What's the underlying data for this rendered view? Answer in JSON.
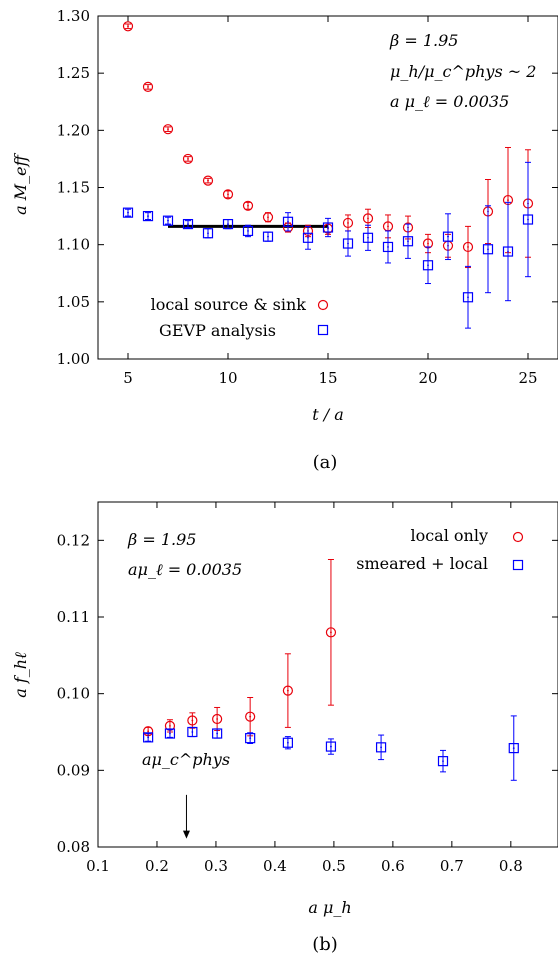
{
  "chart_data": [
    {
      "type": "scatter",
      "panel_label": "(a)",
      "xlabel": "t / a",
      "ylabel": "a M_eff",
      "xlim": [
        3.5,
        26.5
      ],
      "ylim": [
        1.0,
        1.3
      ],
      "xticks": [
        5,
        10,
        15,
        20,
        25
      ],
      "yticks": [
        1.0,
        1.05,
        1.1,
        1.15,
        1.2,
        1.25,
        1.3
      ],
      "xtick_labels": [
        "5",
        "10",
        "15",
        "20",
        "25"
      ],
      "ytick_labels": [
        "1.00",
        "1.05",
        "1.10",
        "1.15",
        "1.20",
        "1.25",
        "1.30"
      ],
      "grid": false,
      "legend_position": "bottom-left",
      "annotations": [
        "β = 1.95",
        "μ_h/μ_c^phys ~ 2",
        "a μ_ℓ = 0.0035"
      ],
      "series": [
        {
          "name": "local source & sink",
          "marker": "circle",
          "color": "#e8000b",
          "points": [
            {
              "x": 5,
              "y": 1.291,
              "err": 0.002
            },
            {
              "x": 6,
              "y": 1.238,
              "err": 0.002
            },
            {
              "x": 7,
              "y": 1.201,
              "err": 0.002
            },
            {
              "x": 8,
              "y": 1.175,
              "err": 0.002
            },
            {
              "x": 9,
              "y": 1.156,
              "err": 0.002
            },
            {
              "x": 10,
              "y": 1.144,
              "err": 0.003
            },
            {
              "x": 11,
              "y": 1.134,
              "err": 0.003
            },
            {
              "x": 12,
              "y": 1.124,
              "err": 0.004
            },
            {
              "x": 13,
              "y": 1.115,
              "err": 0.004
            },
            {
              "x": 14,
              "y": 1.112,
              "err": 0.005
            },
            {
              "x": 15,
              "y": 1.114,
              "err": 0.005
            },
            {
              "x": 16,
              "y": 1.119,
              "err": 0.007
            },
            {
              "x": 17,
              "y": 1.123,
              "err": 0.008
            },
            {
              "x": 18,
              "y": 1.116,
              "err": 0.01
            },
            {
              "x": 19,
              "y": 1.115,
              "err": 0.01
            },
            {
              "x": 20,
              "y": 1.101,
              "err": 0.008
            },
            {
              "x": 21,
              "y": 1.099,
              "err": 0.01
            },
            {
              "x": 22,
              "y": 1.098,
              "err": 0.018
            },
            {
              "x": 23,
              "y": 1.129,
              "err": 0.028
            },
            {
              "x": 24,
              "y": 1.139,
              "err": 0.046
            },
            {
              "x": 25,
              "y": 1.136,
              "err": 0.047
            }
          ]
        },
        {
          "name": "GEVP analysis",
          "marker": "square",
          "color": "#0000ff",
          "points": [
            {
              "x": 5,
              "y": 1.128,
              "err": 0.003
            },
            {
              "x": 6,
              "y": 1.125,
              "err": 0.003
            },
            {
              "x": 7,
              "y": 1.121,
              "err": 0.003
            },
            {
              "x": 8,
              "y": 1.118,
              "err": 0.003
            },
            {
              "x": 9,
              "y": 1.11,
              "err": 0.004
            },
            {
              "x": 10,
              "y": 1.118,
              "err": 0.004
            },
            {
              "x": 11,
              "y": 1.112,
              "err": 0.005
            },
            {
              "x": 12,
              "y": 1.107,
              "err": 0.004
            },
            {
              "x": 13,
              "y": 1.12,
              "err": 0.008
            },
            {
              "x": 14,
              "y": 1.106,
              "err": 0.01
            },
            {
              "x": 15,
              "y": 1.115,
              "err": 0.008
            },
            {
              "x": 16,
              "y": 1.101,
              "err": 0.011
            },
            {
              "x": 17,
              "y": 1.106,
              "err": 0.011
            },
            {
              "x": 18,
              "y": 1.098,
              "err": 0.014
            },
            {
              "x": 19,
              "y": 1.103,
              "err": 0.015
            },
            {
              "x": 20,
              "y": 1.082,
              "err": 0.016
            },
            {
              "x": 21,
              "y": 1.107,
              "err": 0.02
            },
            {
              "x": 22,
              "y": 1.054,
              "err": 0.027
            },
            {
              "x": 23,
              "y": 1.096,
              "err": 0.038
            },
            {
              "x": 24,
              "y": 1.094,
              "err": 0.043
            },
            {
              "x": 25,
              "y": 1.122,
              "err": 0.05
            }
          ]
        }
      ],
      "fit_line": {
        "x": [
          7,
          15
        ],
        "y": 1.116,
        "color": "#000000"
      }
    },
    {
      "type": "scatter",
      "panel_label": "(b)",
      "xlabel": "a μ_h",
      "ylabel": "a f_hℓ",
      "xlim": [
        0.1,
        0.88
      ],
      "ylim": [
        0.08,
        0.125
      ],
      "xticks": [
        0.1,
        0.2,
        0.3,
        0.4,
        0.5,
        0.6,
        0.7,
        0.8
      ],
      "yticks": [
        0.08,
        0.09,
        0.1,
        0.11,
        0.12
      ],
      "xtick_labels": [
        "0.1",
        "0.2",
        "0.3",
        "0.4",
        "0.5",
        "0.6",
        "0.7",
        "0.8"
      ],
      "ytick_labels": [
        "0.08",
        "0.09",
        "0.10",
        "0.11",
        "0.12"
      ],
      "grid": false,
      "legend_position": "top-right",
      "annotations": [
        "β = 1.95",
        "aμ_ℓ = 0.0035"
      ],
      "arrow_annotation": {
        "label": "aμ_c^phys",
        "x": 0.25,
        "y_from": 0.0868,
        "y_to": 0.0811
      },
      "series": [
        {
          "name": "local only",
          "marker": "circle",
          "color": "#e8000b",
          "points": [
            {
              "x": 0.185,
              "y": 0.0951,
              "err": 0.0005
            },
            {
              "x": 0.222,
              "y": 0.0958,
              "err": 0.0008
            },
            {
              "x": 0.26,
              "y": 0.0965,
              "err": 0.001
            },
            {
              "x": 0.302,
              "y": 0.0967,
              "err": 0.0015
            },
            {
              "x": 0.358,
              "y": 0.097,
              "err": 0.0025
            },
            {
              "x": 0.422,
              "y": 0.1004,
              "err": 0.0048
            },
            {
              "x": 0.495,
              "y": 0.108,
              "err": 0.0095
            }
          ]
        },
        {
          "name": "smeared + local",
          "marker": "square",
          "color": "#0000ff",
          "points": [
            {
              "x": 0.185,
              "y": 0.0943,
              "err": 0.0005
            },
            {
              "x": 0.222,
              "y": 0.0948,
              "err": 0.0005
            },
            {
              "x": 0.26,
              "y": 0.095,
              "err": 0.0006
            },
            {
              "x": 0.302,
              "y": 0.0948,
              "err": 0.0006
            },
            {
              "x": 0.358,
              "y": 0.0942,
              "err": 0.0007
            },
            {
              "x": 0.422,
              "y": 0.0936,
              "err": 0.0008
            },
            {
              "x": 0.495,
              "y": 0.0931,
              "err": 0.001
            },
            {
              "x": 0.58,
              "y": 0.093,
              "err": 0.0016
            },
            {
              "x": 0.685,
              "y": 0.0912,
              "err": 0.0014
            },
            {
              "x": 0.805,
              "y": 0.0929,
              "err": 0.0042
            }
          ]
        }
      ]
    }
  ]
}
